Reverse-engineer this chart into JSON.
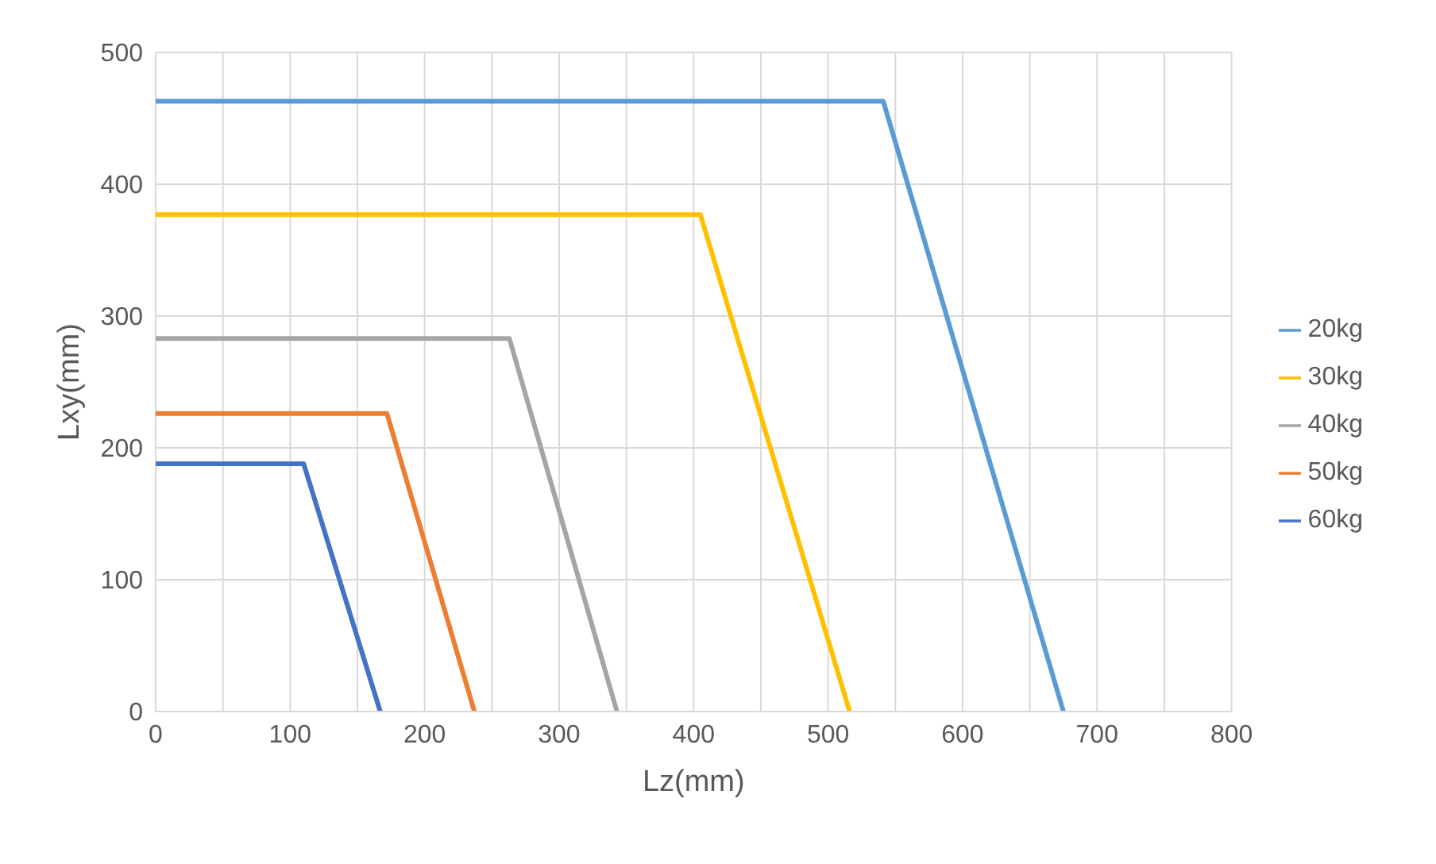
{
  "chart_data": {
    "type": "line",
    "xlabel": "Lz(mm)",
    "ylabel": "Lxy(mm)",
    "series": [
      {
        "name": "60kg",
        "color": "#4472c4",
        "x": [
          0,
          110,
          167
        ],
        "values": [
          188,
          188,
          0
        ]
      },
      {
        "name": "50kg",
        "color": "#ed7d31",
        "x": [
          0,
          172,
          237
        ],
        "values": [
          226,
          226,
          0
        ]
      },
      {
        "name": "40kg",
        "color": "#a5a5a5",
        "x": [
          0,
          263,
          343
        ],
        "values": [
          283,
          283,
          0
        ]
      },
      {
        "name": "30kg",
        "color": "#ffc000",
        "x": [
          0,
          405,
          516
        ],
        "values": [
          377,
          377,
          0
        ]
      },
      {
        "name": "20kg",
        "color": "#5b9bd5",
        "x": [
          0,
          541,
          675
        ],
        "values": [
          463,
          463,
          0
        ]
      }
    ],
    "xlim": [
      0,
      800
    ],
    "ylim": [
      0,
      500
    ],
    "xticks": [
      0,
      {
        "value": 50,
        "label": null
      },
      100,
      {
        "value": 150,
        "label": null
      },
      200,
      {
        "value": 250,
        "label": null
      },
      300,
      {
        "value": 350,
        "label": null
      },
      400,
      {
        "value": 450,
        "label": null
      },
      500,
      {
        "value": 550,
        "label": null
      },
      600,
      {
        "value": 650,
        "label": null
      },
      700,
      {
        "value": 750,
        "label": null
      },
      800
    ],
    "yticks": [
      0,
      100,
      200,
      300,
      400,
      500
    ],
    "grid": true,
    "legend": "right",
    "marker": "none",
    "line_style": "solid"
  }
}
